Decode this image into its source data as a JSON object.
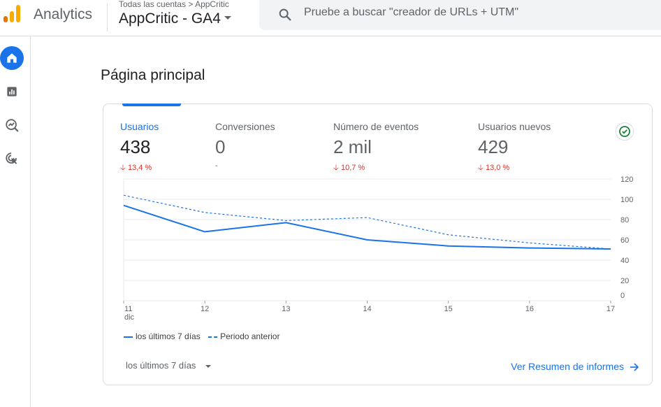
{
  "app": {
    "name": "Analytics"
  },
  "breadcrumb": {
    "text": "Todas las cuentas > AppCritic"
  },
  "property": {
    "name": "AppCritic - GA4"
  },
  "search": {
    "placeholder": "Pruebe a buscar \"creador de URLs + UTM\""
  },
  "nav": [
    {
      "name": "home",
      "icon": "home-icon",
      "active": true
    },
    {
      "name": "reports",
      "icon": "bar-chart-icon"
    },
    {
      "name": "explore",
      "icon": "explore-icon"
    },
    {
      "name": "advertising",
      "icon": "ads-cursor-icon"
    }
  ],
  "page": {
    "title": "Página principal"
  },
  "metrics": [
    {
      "label": "Usuarios",
      "value": "438",
      "change": "13,4 %",
      "active": true
    },
    {
      "label": "Conversiones",
      "value": "0",
      "change": "-"
    },
    {
      "label": "Número de eventos",
      "value": "2 mil",
      "change": "10,7 %"
    },
    {
      "label": "Usuarios nuevos",
      "value": "429",
      "change": "13,0 %"
    }
  ],
  "chart_data": {
    "type": "line",
    "x": [
      "11",
      "12",
      "13",
      "14",
      "15",
      "16",
      "17"
    ],
    "x_sublabel": "dic",
    "yticks": [
      0,
      20,
      40,
      60,
      80,
      100,
      120
    ],
    "ylim": [
      0,
      120
    ],
    "series": [
      {
        "name": "los últimos 7 días",
        "style": "solid",
        "values": [
          94,
          68,
          77,
          60,
          54,
          52,
          51
        ]
      },
      {
        "name": "Periodo anterior",
        "style": "dashed",
        "values": [
          104,
          87,
          79,
          82,
          65,
          57,
          51
        ]
      }
    ]
  },
  "legend": {
    "current": "los últimos 7 días",
    "previous": "Periodo anterior"
  },
  "footer": {
    "date_range": "los últimos 7 días",
    "view_link": "Ver Resumen de informes"
  },
  "colors": {
    "accent": "#1a73e8",
    "negative": "#d93025",
    "positive": "#188038"
  }
}
